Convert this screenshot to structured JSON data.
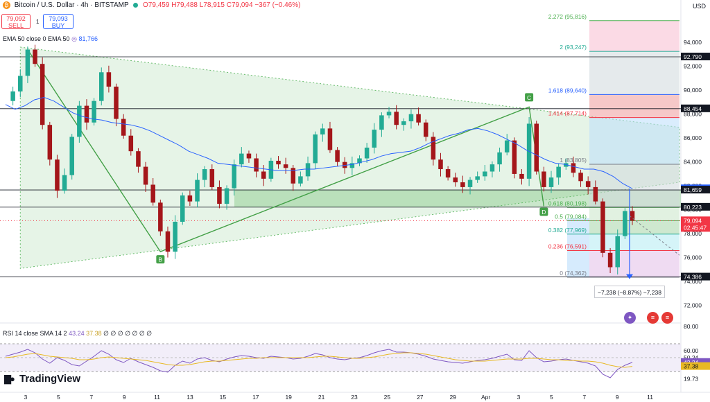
{
  "header": {
    "symbol": "Bitcoin / U.S. Dollar · 4h · BITSTAMP",
    "open": "O79,459",
    "high": "H79,488",
    "low": "L78,915",
    "close": "C79,094",
    "change": "−367 (−0.46%)",
    "coin_icon": "bitcoin-icon"
  },
  "trade": {
    "sell_price": "79,092",
    "sell_label": "SELL",
    "spread": "1",
    "buy_price": "79,093",
    "buy_label": "BUY"
  },
  "indicators": {
    "ema_label": "EMA 50 close 0 EMA 50",
    "ema_value": "81,766",
    "rsi_label": "RSI 14 close SMA 14 2",
    "rsi_value": "43.24",
    "rsi_sma_value": "37.38",
    "rsi_extra": "∅ ∅ ∅ ∅ ∅ ∅ ∅"
  },
  "axis": {
    "currency": "USD"
  },
  "measure_label": "−7,238 (−8.87%) −7,238",
  "brand": "TradingView",
  "colors": {
    "up": "#22ab94",
    "down": "#a4161a",
    "ema": "#2962ff",
    "rsi": "#7e57c2",
    "rsi_sma": "#e8b923",
    "triangle": "#c8e6c9"
  },
  "chart_data": {
    "type": "candlestick",
    "timeframe": "4h",
    "x_ticks": [
      "3",
      "5",
      "7",
      "9",
      "11",
      "13",
      "15",
      "17",
      "19",
      "21",
      "23",
      "25",
      "27",
      "29",
      "Apr",
      "3",
      "5",
      "7",
      "9",
      "11"
    ],
    "price_ylim": [
      71000,
      96500
    ],
    "price_ticks": [
      72000,
      74000,
      76000,
      78000,
      80000,
      82000,
      84000,
      86000,
      88000,
      90000,
      92000,
      94000
    ],
    "price_tick_labels": [
      "72,000",
      "74,000",
      "76,000",
      "78,000",
      "80,000",
      "82,000",
      "84,000",
      "86,000",
      "88,000",
      "90,000",
      "92,000",
      "94,000"
    ],
    "price_path": [
      89100,
      89900,
      91200,
      93400,
      92200,
      87100,
      84200,
      81600,
      82900,
      86100,
      88700,
      87300,
      89100,
      91500,
      90300,
      87600,
      86200,
      84900,
      83600,
      82100,
      80600,
      78200,
      76500,
      79000,
      81200,
      80700,
      82500,
      83400,
      81900,
      80500,
      81800,
      83800,
      84700,
      84300,
      83200,
      82600,
      84100,
      83800,
      83500,
      82200,
      82800,
      83900,
      86300,
      86800,
      85000,
      84000,
      83500,
      83900,
      84300,
      85200,
      86700,
      87900,
      88200,
      87100,
      87400,
      88000,
      87300,
      86100,
      84200,
      83400,
      82700,
      82300,
      81900,
      82500,
      82800,
      83200,
      83800,
      84800,
      85800,
      83000,
      82600,
      87200,
      83200,
      81900,
      82700,
      83600,
      83900,
      83100,
      82400,
      81900,
      80700,
      76400,
      75200,
      77800,
      79900,
      79094
    ],
    "ema50_path": [
      88800,
      88400,
      88700,
      89200,
      89400,
      89100,
      88600,
      88100,
      87800,
      87600,
      87500,
      87300,
      87200,
      87100,
      86900,
      86600,
      86200,
      85800,
      85400,
      84900,
      84600,
      84300,
      83900,
      83800,
      83700,
      83600,
      83500,
      83400,
      83300,
      83300,
      83300,
      83400,
      83400,
      83500,
      83600,
      83700,
      83800,
      84000,
      84200,
      84500,
      84700,
      84800,
      84900,
      85200,
      85600,
      85900,
      86200,
      86400,
      86700,
      86800,
      86600,
      86300,
      85900,
      85500,
      85000,
      84600,
      84200,
      83900,
      83800,
      83600,
      83400,
      83400,
      83200,
      82800,
      82200,
      81766
    ],
    "ema_current": 81766,
    "rsi_ylim": [
      10,
      80
    ],
    "rsi_ticks": [
      60,
      50.24,
      43.24,
      37.38,
      19.73
    ],
    "rsi_tick_labels": [
      "60.00",
      "50.24",
      "43.24",
      "37.38",
      "19.73"
    ],
    "rsi_top_tick": "80.00",
    "rsi_path": [
      52,
      55,
      58,
      62,
      57,
      48,
      42,
      50,
      46,
      40,
      38,
      45,
      52,
      60,
      55,
      47,
      43,
      49,
      44,
      40,
      36,
      31,
      29,
      39,
      45,
      42,
      48,
      50,
      46,
      44,
      48,
      51,
      53,
      52,
      50,
      49,
      52,
      51,
      50,
      48,
      49,
      52,
      56,
      54,
      50,
      48,
      47,
      49,
      50,
      53,
      57,
      60,
      62,
      58,
      58,
      57,
      55,
      52,
      48,
      46,
      44,
      43,
      42,
      44,
      46,
      47,
      49,
      52,
      55,
      47,
      46,
      60,
      50,
      44,
      45,
      47,
      48,
      46,
      44,
      42,
      38,
      26,
      21,
      33,
      39,
      43.24
    ],
    "rsi_sma_path": [
      50,
      51,
      53,
      55,
      56,
      54,
      52,
      51,
      50,
      49,
      47,
      47,
      48,
      50,
      51,
      50,
      49,
      48,
      47,
      46,
      44,
      42,
      40,
      39,
      39,
      40,
      42,
      44,
      45,
      45,
      46,
      47,
      48,
      49,
      49,
      50,
      50,
      50,
      50,
      50,
      50,
      50,
      51,
      52,
      52,
      51,
      50,
      49,
      49,
      50,
      51,
      53,
      55,
      56,
      57,
      57,
      56,
      55,
      53,
      51,
      49,
      47,
      46,
      45,
      45,
      45,
      46,
      47,
      48,
      48,
      48,
      49,
      49,
      48,
      47,
      47,
      46,
      46,
      45,
      45,
      44,
      42,
      39,
      37,
      36,
      37.38
    ],
    "price_labels": [
      {
        "value": 92790,
        "text": "92,790",
        "style": "dark"
      },
      {
        "value": 88454,
        "text": "88,454",
        "style": "dark"
      },
      {
        "value": 81766,
        "text": "81,766",
        "style": "ema"
      },
      {
        "value": 81659,
        "text": "81,659",
        "style": "dark"
      },
      {
        "value": 80223,
        "text": "80,223",
        "style": "dark"
      },
      {
        "value": 79094,
        "text": "79,094",
        "style": "last",
        "sub": "02:45:47"
      },
      {
        "value": 74386,
        "text": "74,386",
        "style": "dark"
      }
    ],
    "horizontal_lines": [
      92790,
      88454,
      81659,
      80223,
      74386
    ],
    "fibonacci": [
      {
        "level": "2.272",
        "value": 95816,
        "label": "2.272 (95,816)",
        "color": "#4caf50"
      },
      {
        "level": "2",
        "value": 93247,
        "label": "2 (93,247)",
        "color": "#22ab94"
      },
      {
        "level": "1.618",
        "value": 89640,
        "label": "1.618 (89,640)",
        "color": "#2962ff"
      },
      {
        "level": "1.414",
        "value": 87714,
        "label": "1.414 (87,714)",
        "color": "#f23645"
      },
      {
        "level": "1",
        "value": 83805,
        "label": "1 (83,805)",
        "color": "#787b86"
      },
      {
        "level": "0.618",
        "value": 80198,
        "label": "0.618 (80,198)",
        "color": "#4caf50"
      },
      {
        "level": "0.5",
        "value": 79084,
        "label": "0.5 (79,084)",
        "color": "#4caf50"
      },
      {
        "level": "0.382",
        "value": 77969,
        "label": "0.382 (77,969)",
        "color": "#22ab94"
      },
      {
        "level": "0.236",
        "value": 76591,
        "label": "0.236 (76,591)",
        "color": "#f23645"
      },
      {
        "level": "0",
        "value": 74362,
        "label": "0 (74,362)",
        "color": "#787b86"
      }
    ],
    "pattern_points": [
      {
        "label": "B",
        "x_index": 21,
        "value": 76500
      },
      {
        "label": "C",
        "x_index": 71,
        "value": 88600
      },
      {
        "label": "D",
        "x_index": 73,
        "value": 80300
      }
    ]
  }
}
